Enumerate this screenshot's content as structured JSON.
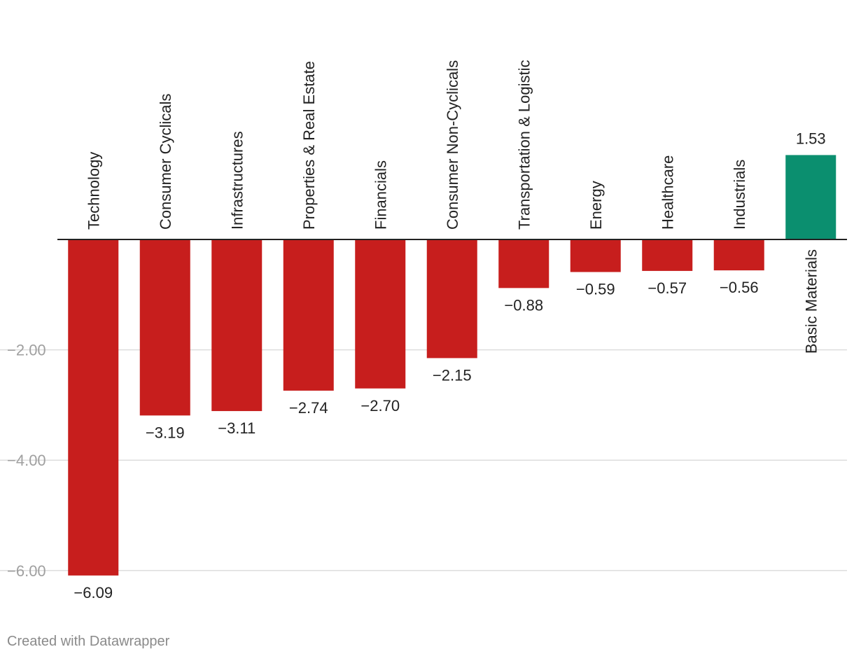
{
  "chart_data": {
    "type": "bar",
    "categories": [
      "Technology",
      "Consumer Cyclicals",
      "Infrastructures",
      "Properties & Real Estate",
      "Financials",
      "Consumer Non-Cyclicals",
      "Transportation & Logistic",
      "Energy",
      "Healthcare",
      "Industrials",
      "Basic Materials"
    ],
    "values": [
      -6.09,
      -3.19,
      -3.11,
      -2.74,
      -2.7,
      -2.15,
      -0.88,
      -0.59,
      -0.57,
      -0.56,
      1.53
    ],
    "value_labels": [
      "−6.09",
      "−3.19",
      "−3.11",
      "−2.74",
      "−2.70",
      "−2.15",
      "−0.88",
      "−0.59",
      "−0.57",
      "−0.56",
      "1.53"
    ],
    "ylim": [
      -6.09,
      1.53
    ],
    "yticks": [
      -2.0,
      -4.0,
      -6.0
    ],
    "ytick_labels": [
      "−2.00",
      "−4.00",
      "−6.00"
    ],
    "grid": true,
    "colors": {
      "negative": "#c71e1d",
      "positive": "#0b8f6f",
      "grid": "#dddddd",
      "axis": "#222222",
      "tick_label": "#a0a0a0",
      "text": "#222222"
    },
    "title": "",
    "xlabel": "",
    "ylabel": ""
  },
  "footer": {
    "credit": "Created with Datawrapper"
  }
}
